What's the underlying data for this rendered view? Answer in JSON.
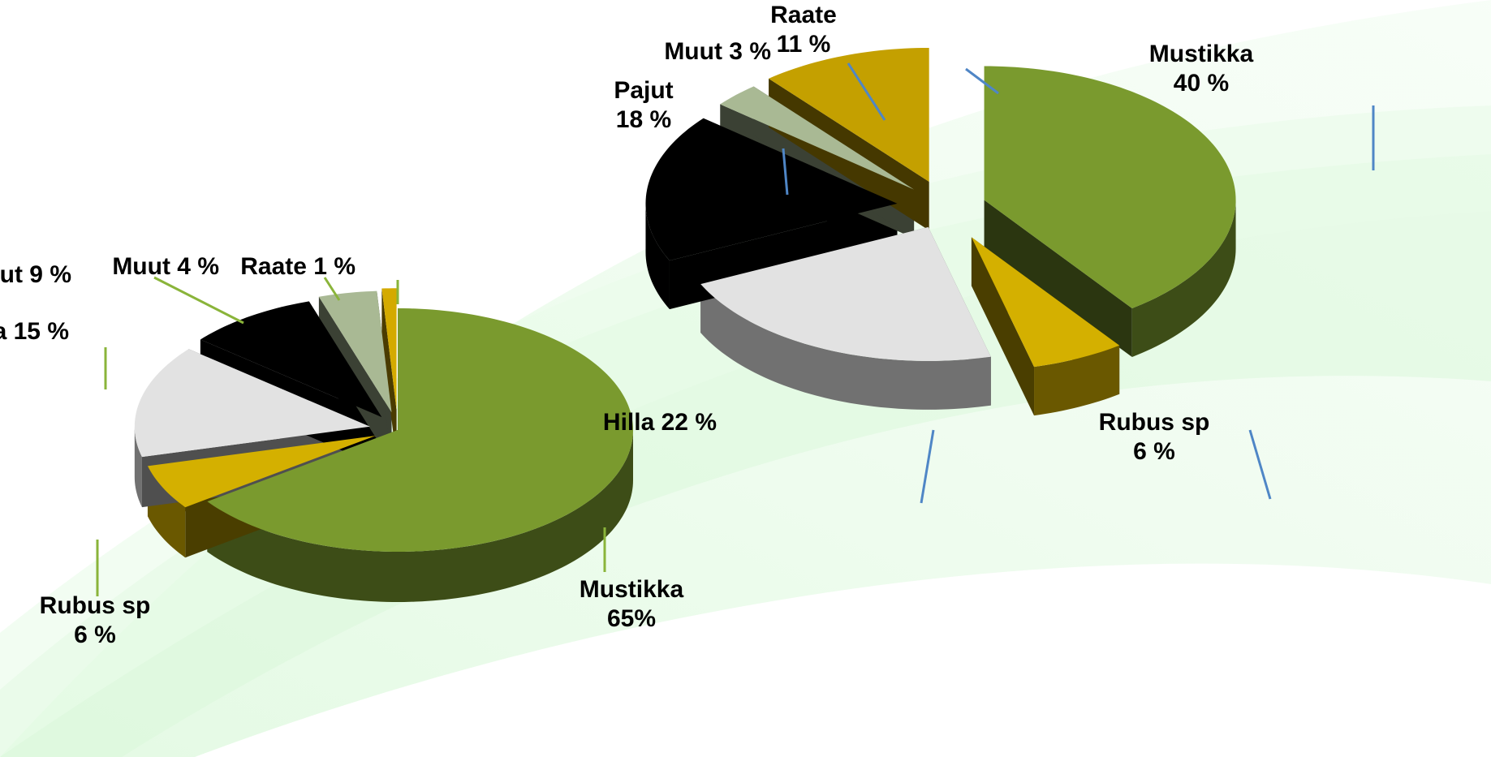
{
  "chart_data": [
    {
      "type": "pie",
      "categories": [
        "Mustikka",
        "Rubus sp",
        "Hilla",
        "Pajut",
        "Muut",
        "Raate"
      ],
      "values": [
        65,
        6,
        15,
        9,
        4,
        1
      ],
      "value_labels": [
        "65%",
        "6 %",
        "15 %",
        "9 %",
        "4 %",
        "1 %"
      ],
      "colors": [
        "#7a9a2e",
        "#d4b000",
        "#e2e2e2",
        "#000000",
        "#a9b994",
        "#d4aa00"
      ]
    },
    {
      "type": "pie",
      "categories": [
        "Mustikka",
        "Rubus sp",
        "Hilla",
        "Pajut",
        "Muut",
        "Raate"
      ],
      "values": [
        40,
        6,
        22,
        18,
        3,
        11
      ],
      "value_labels": [
        "40 %",
        "6 %",
        "22 %",
        "18 %",
        "3 %",
        "11 %"
      ],
      "colors": [
        "#7a9a2e",
        "#d4b000",
        "#e2e2e2",
        "#000000",
        "#a9b994",
        "#c4a000"
      ]
    }
  ]
}
